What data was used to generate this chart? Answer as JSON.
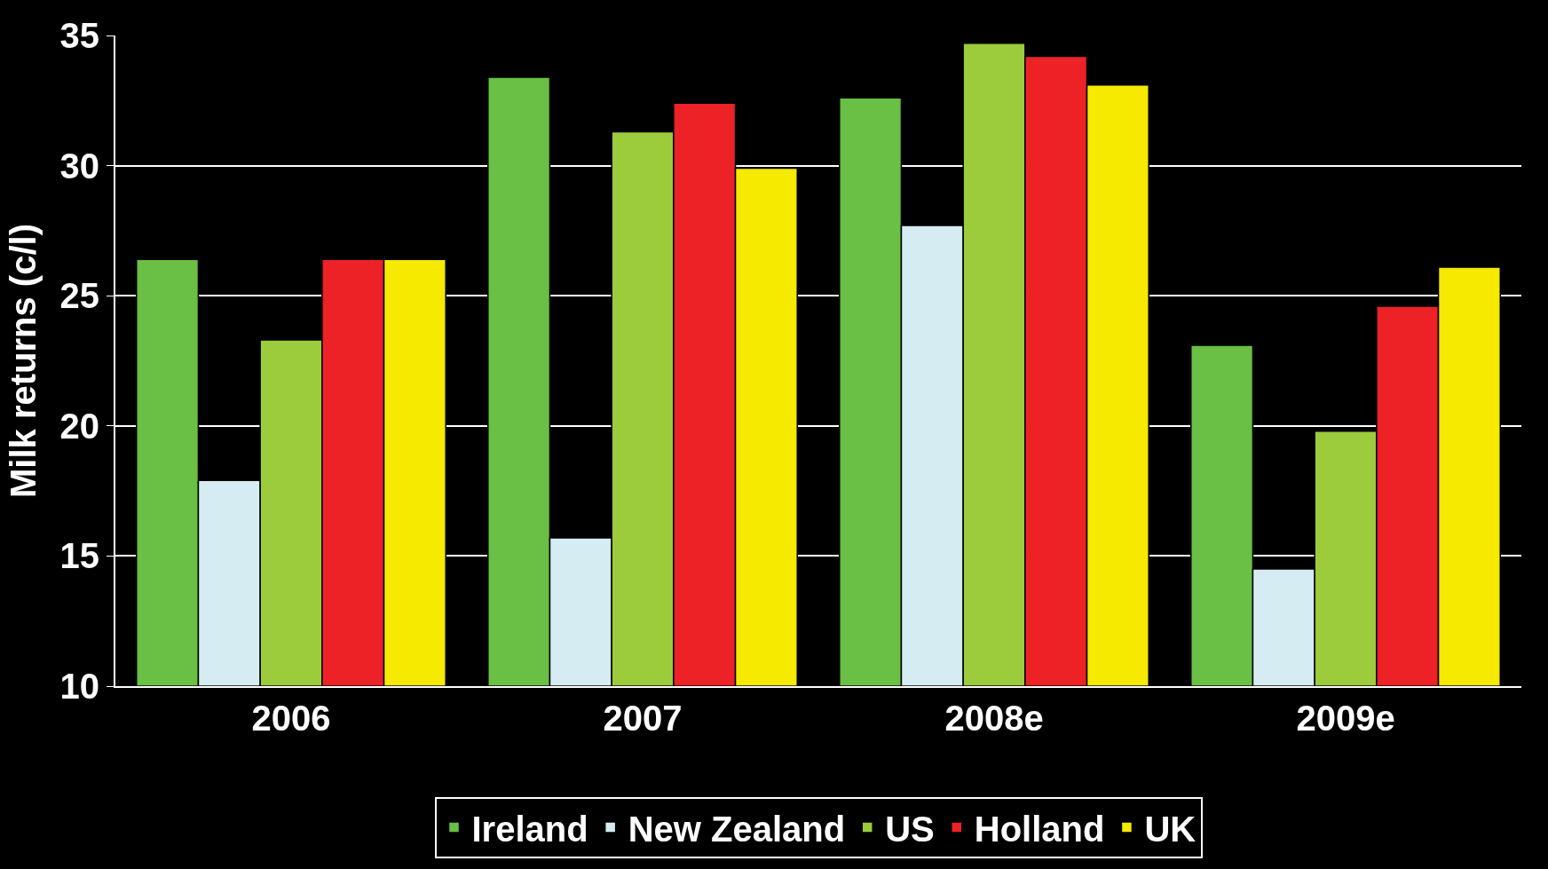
{
  "chart_data": {
    "type": "bar",
    "ylabel": "Milk returns (c/l)",
    "categories": [
      "2006",
      "2007",
      "2008e",
      "2009e"
    ],
    "series": [
      {
        "name": "Ireland",
        "color": "#6abf45",
        "values": [
          26.4,
          33.4,
          32.6,
          23.1
        ]
      },
      {
        "name": "New Zealand",
        "color": "#d4ecf2",
        "values": [
          17.9,
          15.7,
          27.7,
          14.5
        ]
      },
      {
        "name": "US",
        "color": "#9ccb3b",
        "values": [
          23.3,
          31.3,
          34.7,
          19.8
        ]
      },
      {
        "name": "Holland",
        "color": "#ec2227",
        "values": [
          26.4,
          32.4,
          34.2,
          24.6
        ]
      },
      {
        "name": "UK",
        "color": "#f5ea00",
        "values": [
          26.4,
          29.9,
          33.1,
          26.1
        ]
      }
    ],
    "ylim": [
      10,
      35
    ],
    "yticks": [
      10,
      15,
      20,
      25,
      30,
      35
    ],
    "grid": "y",
    "legend": "bottom"
  }
}
